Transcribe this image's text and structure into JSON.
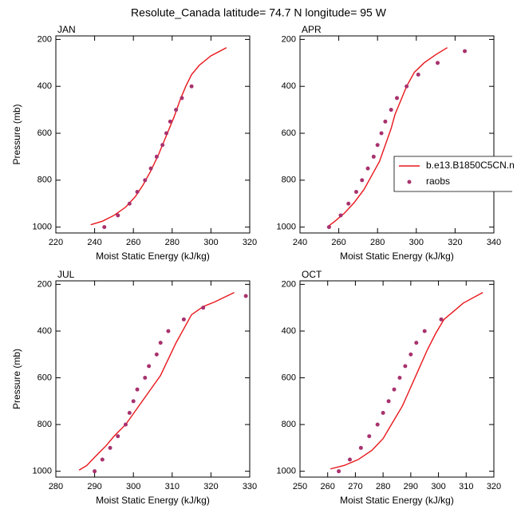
{
  "title": "Resolute_Canada  latitude= 74.7 N longitude= 95 W",
  "chart_data": [
    {
      "type": "line",
      "title": "JAN",
      "xlabel": "Moist Static Energy (kJ/kg)",
      "ylabel": "Pressure (mb)",
      "xlim": [
        220,
        320
      ],
      "xticks": [
        220,
        240,
        260,
        280,
        300,
        320
      ],
      "ylim": [
        1025,
        185
      ],
      "yticks": [
        200,
        400,
        600,
        800,
        1000
      ],
      "series": [
        {
          "name": "b.e13.B1850C5CN.n",
          "color": "#e8161b",
          "mode": "line",
          "x": [
            238,
            244,
            250,
            256,
            261,
            265,
            269,
            273,
            277,
            281,
            284,
            287,
            290,
            294,
            300,
            308
          ],
          "values": [
            990,
            975,
            950,
            915,
            870,
            820,
            760,
            690,
            610,
            530,
            460,
            400,
            350,
            310,
            270,
            235
          ]
        },
        {
          "name": "raobs",
          "color": "#a8326e",
          "mode": "markers",
          "x": [
            245,
            252,
            258,
            262,
            266,
            269,
            272,
            275,
            277,
            279,
            282,
            285,
            290
          ],
          "values": [
            1000,
            950,
            900,
            850,
            800,
            750,
            700,
            650,
            600,
            550,
            500,
            450,
            400
          ]
        }
      ]
    },
    {
      "type": "line",
      "title": "APR",
      "xlabel": "Moist Static Energy (kJ/kg)",
      "legend": true,
      "xlim": [
        240,
        340
      ],
      "xticks": [
        240,
        260,
        280,
        300,
        320,
        340
      ],
      "ylim": [
        1025,
        185
      ],
      "yticks": [
        200,
        400,
        600,
        800,
        1000
      ],
      "series": [
        {
          "name": "b.e13.B1850C5CN.n",
          "color": "#e8161b",
          "mode": "line",
          "x": [
            254,
            258,
            263,
            268,
            273,
            277,
            281,
            284,
            287,
            289,
            292,
            295,
            299,
            304,
            310,
            316
          ],
          "values": [
            1000,
            975,
            940,
            895,
            840,
            780,
            720,
            650,
            580,
            520,
            460,
            400,
            340,
            300,
            265,
            235
          ]
        },
        {
          "name": "raobs",
          "color": "#a8326e",
          "mode": "markers",
          "x": [
            255,
            261,
            265,
            269,
            272,
            275,
            278,
            280,
            282,
            284,
            287,
            290,
            295,
            301,
            311,
            325
          ],
          "values": [
            1000,
            950,
            900,
            850,
            800,
            750,
            700,
            650,
            600,
            550,
            500,
            450,
            400,
            350,
            300,
            250
          ]
        }
      ]
    },
    {
      "type": "line",
      "title": "JUL",
      "xlabel": "Moist Static Energy (kJ/kg)",
      "ylabel": "Pressure (mb)",
      "xlim": [
        280,
        330
      ],
      "xticks": [
        280,
        290,
        300,
        310,
        320,
        330
      ],
      "ylim": [
        1025,
        185
      ],
      "yticks": [
        200,
        400,
        600,
        800,
        1000
      ],
      "series": [
        {
          "name": "b.e13.B1850C5CN.n",
          "color": "#e8161b",
          "mode": "line",
          "x": [
            286,
            288,
            290,
            293,
            295,
            298,
            301,
            304,
            307,
            309,
            311,
            313,
            315,
            318,
            321,
            326
          ],
          "values": [
            995,
            975,
            940,
            890,
            850,
            800,
            730,
            660,
            590,
            520,
            450,
            390,
            330,
            295,
            275,
            235
          ]
        },
        {
          "name": "raobs",
          "color": "#a8326e",
          "mode": "markers",
          "x": [
            290,
            292,
            294,
            296,
            298,
            299,
            300,
            301,
            303,
            304,
            306,
            307,
            309,
            313,
            318,
            329
          ],
          "values": [
            1000,
            950,
            900,
            850,
            800,
            750,
            700,
            650,
            600,
            550,
            500,
            450,
            400,
            350,
            300,
            250
          ]
        }
      ]
    },
    {
      "type": "line",
      "title": "OCT",
      "xlabel": "Moist Static Energy (kJ/kg)",
      "xlim": [
        250,
        320
      ],
      "xticks": [
        250,
        260,
        270,
        280,
        290,
        300,
        310,
        320
      ],
      "ylim": [
        1025,
        185
      ],
      "yticks": [
        200,
        400,
        600,
        800,
        1000
      ],
      "series": [
        {
          "name": "b.e13.B1850C5CN.n",
          "color": "#e8161b",
          "mode": "line",
          "x": [
            261,
            266,
            271,
            276,
            280,
            283,
            287,
            290,
            293,
            296,
            299,
            302,
            305,
            309,
            316
          ],
          "values": [
            990,
            975,
            950,
            910,
            860,
            800,
            720,
            640,
            560,
            480,
            410,
            350,
            320,
            280,
            235
          ]
        },
        {
          "name": "raobs",
          "color": "#a8326e",
          "mode": "markers",
          "x": [
            264,
            268,
            272,
            275,
            278,
            280,
            282,
            284,
            286,
            288,
            290,
            292,
            295,
            301
          ],
          "values": [
            1000,
            950,
            900,
            850,
            800,
            750,
            700,
            650,
            600,
            550,
            500,
            450,
            400,
            350
          ]
        }
      ]
    }
  ]
}
